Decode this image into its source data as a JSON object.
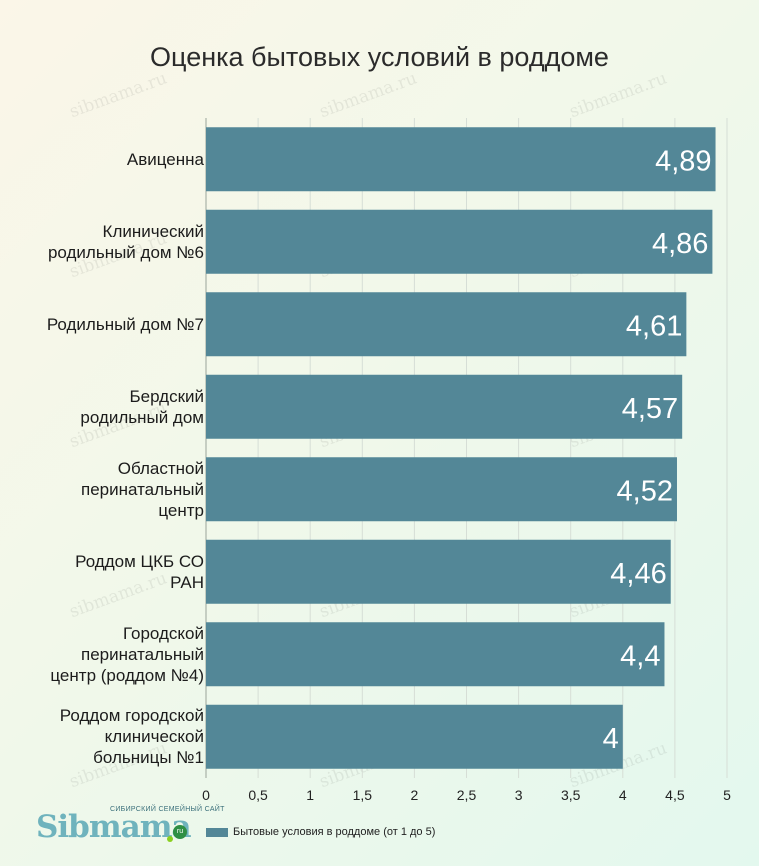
{
  "watermark": "sibmama.ru",
  "logo": {
    "tagline": "СИБИРСКИЙ СЕМЕЙНЫЙ САЙТ",
    "name": "Sibmama",
    "suffix": "ru"
  },
  "chart_data": {
    "type": "bar",
    "orientation": "horizontal",
    "title": "Оценка бытовых условий в роддоме",
    "categories": [
      "Авиценна",
      "Клинический родильный дом №6",
      "Родильный дом №7",
      "Бердский родильный дом",
      "Областной перинатальный центр",
      "Роддом ЦКБ СО РАН",
      "Городской перинатальный центр (роддом №4)",
      "Роддом городской клинической больницы №1"
    ],
    "category_label_lines": [
      "Авиценна",
      "Клинический\nродильный дом №6",
      "Родильный дом №7",
      "Бердский\nродильный дом",
      "Областной\nперинатальный\nцентр",
      "Роддом ЦКБ СО\nРАН",
      "Городской\nперинатальный\nцентр (роддом №4)",
      "Роддом городской\nклинической\nбольницы №1"
    ],
    "series": [
      {
        "name": "Бытовые условия в роддоме (от 1 до 5)",
        "values": [
          4.89,
          4.86,
          4.61,
          4.57,
          4.52,
          4.46,
          4.4,
          4
        ],
        "value_labels": [
          "4,89",
          "4,86",
          "4,61",
          "4,57",
          "4,52",
          "4,46",
          "4,4",
          "4"
        ],
        "color": "#538797"
      }
    ],
    "xlim": [
      0,
      5
    ],
    "x_ticks": [
      0,
      0.5,
      1,
      1.5,
      2,
      2.5,
      3,
      3.5,
      4,
      4.5,
      5
    ],
    "x_tick_labels": [
      "0",
      "0,5",
      "1",
      "1,5",
      "2",
      "2,5",
      "3",
      "3,5",
      "4",
      "4,5",
      "5"
    ],
    "grid": true,
    "legend_position": "bottom",
    "xlabel": "",
    "ylabel": ""
  }
}
